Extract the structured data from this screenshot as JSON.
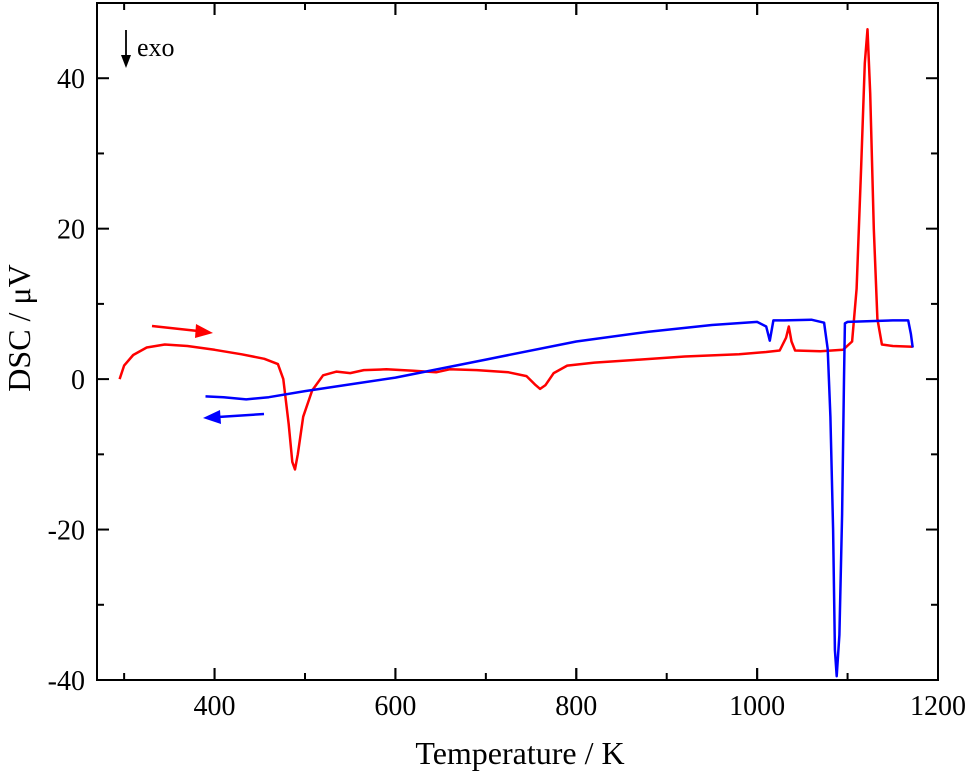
{
  "chart_data": {
    "type": "line",
    "xlabel": "Temperature / K",
    "ylabel": "DSC / μV",
    "xlim": [
      270,
      1200
    ],
    "ylim": [
      -40,
      50
    ],
    "xticks": [
      400,
      600,
      800,
      1000,
      1200
    ],
    "yticks": [
      -40,
      -20,
      0,
      20,
      40
    ],
    "x_tick_labels": [
      "400",
      "600",
      "800",
      "1000",
      "1200"
    ],
    "y_tick_labels": [
      "-40",
      "-20",
      "0",
      "20",
      "40"
    ],
    "annotation": "exo",
    "grid": false,
    "colors": {
      "heating": "#ff0000",
      "cooling": "#0000ff",
      "axes": "#000000"
    },
    "series": [
      {
        "direction": "heating",
        "color": "#ff0000",
        "points": [
          [
            295,
            0
          ],
          [
            300,
            1.8
          ],
          [
            310,
            3.2
          ],
          [
            325,
            4.2
          ],
          [
            345,
            4.6
          ],
          [
            370,
            4.4
          ],
          [
            400,
            3.9
          ],
          [
            430,
            3.3
          ],
          [
            455,
            2.7
          ],
          [
            470,
            2.0
          ],
          [
            476,
            0
          ],
          [
            482,
            -6
          ],
          [
            486,
            -11
          ],
          [
            489,
            -12
          ],
          [
            492,
            -10
          ],
          [
            498,
            -5
          ],
          [
            508,
            -1.5
          ],
          [
            520,
            0.5
          ],
          [
            535,
            1.0
          ],
          [
            550,
            0.8
          ],
          [
            565,
            1.2
          ],
          [
            590,
            1.3
          ],
          [
            620,
            1.1
          ],
          [
            645,
            0.9
          ],
          [
            660,
            1.3
          ],
          [
            690,
            1.2
          ],
          [
            725,
            0.9
          ],
          [
            745,
            0.4
          ],
          [
            755,
            -0.8
          ],
          [
            760,
            -1.3
          ],
          [
            766,
            -0.8
          ],
          [
            775,
            0.8
          ],
          [
            790,
            1.8
          ],
          [
            820,
            2.2
          ],
          [
            870,
            2.6
          ],
          [
            920,
            3.0
          ],
          [
            980,
            3.3
          ],
          [
            1010,
            3.6
          ],
          [
            1025,
            3.8
          ],
          [
            1032,
            5.5
          ],
          [
            1035,
            7.0
          ],
          [
            1038,
            5.0
          ],
          [
            1042,
            3.8
          ],
          [
            1070,
            3.7
          ],
          [
            1095,
            3.9
          ],
          [
            1105,
            5.0
          ],
          [
            1110,
            12
          ],
          [
            1115,
            28
          ],
          [
            1119,
            42
          ],
          [
            1122,
            46.5
          ],
          [
            1125,
            38
          ],
          [
            1129,
            20
          ],
          [
            1133,
            8
          ],
          [
            1138,
            4.6
          ],
          [
            1150,
            4.4
          ],
          [
            1172,
            4.3
          ]
        ]
      },
      {
        "direction": "cooling",
        "color": "#0000ff",
        "points": [
          [
            1172,
            4.2
          ],
          [
            1170,
            6.0
          ],
          [
            1167,
            7.8
          ],
          [
            1150,
            7.8
          ],
          [
            1100,
            7.6
          ],
          [
            1097,
            7.4
          ],
          [
            1096,
            0
          ],
          [
            1094,
            -18
          ],
          [
            1091,
            -34
          ],
          [
            1088,
            -39.5
          ],
          [
            1086,
            -36
          ],
          [
            1084,
            -20
          ],
          [
            1081,
            -5
          ],
          [
            1078,
            4.0
          ],
          [
            1074,
            7.5
          ],
          [
            1060,
            7.9
          ],
          [
            1030,
            7.8
          ],
          [
            1018,
            7.8
          ],
          [
            1014,
            5.1
          ],
          [
            1010,
            7.0
          ],
          [
            1000,
            7.6
          ],
          [
            950,
            7.2
          ],
          [
            880,
            6.3
          ],
          [
            800,
            5.0
          ],
          [
            700,
            2.6
          ],
          [
            600,
            0.2
          ],
          [
            500,
            -1.6
          ],
          [
            460,
            -2.4
          ],
          [
            435,
            -2.7
          ],
          [
            410,
            -2.4
          ],
          [
            390,
            -2.3
          ]
        ]
      }
    ]
  }
}
